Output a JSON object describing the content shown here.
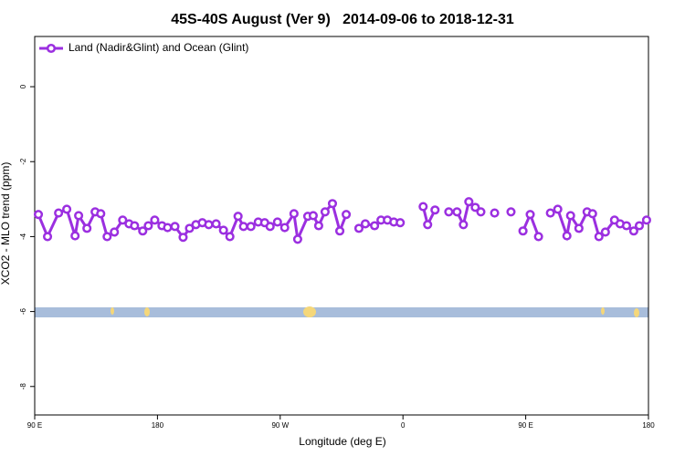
{
  "chart_data": {
    "type": "line",
    "title": "45S-40S August (Ver 9)   2014-09-06 to 2018-12-31",
    "xlabel": "Longitude (deg E)",
    "ylabel": "XCO2 - MLO trend (ppm)",
    "x": [
      92.7,
      99.4,
      107.5,
      113.5,
      119.6,
      122.2,
      128.3,
      134.3,
      138.4,
      143.1,
      148.4,
      154.5,
      159.2,
      163.2,
      169.2,
      173.3,
      178,
      183.3,
      187.4,
      192.8,
      198.8,
      203.5,
      208.2,
      212.9,
      217.6,
      223,
      228.4,
      233.1,
      239.1,
      243.1,
      248.5,
      253.9,
      258.6,
      262.6,
      268,
      273.3,
      280.1,
      282.8,
      290.2,
      294.2,
      298.2,
      302.9,
      308.3,
      313.7,
      318.4,
      323,
      327.7,
      332.4,
      339.2,
      343.9,
      348.6,
      353.3,
      358,
      366.7,
      374.8,
      378.1,
      383.5,
      388.5,
      393.6,
      399.6,
      404.3,
      408.3,
      413,
      417.1,
      421.8,
      427.2,
      433.2,
      439.2,
      444,
      448,
      453.3,
      459.4,
      463.4,
      468.1,
      473.5,
      480.2,
      482.9,
      489,
      495,
      499,
      503.7,
      508.4,
      515.1,
      519.2,
      523.9,
      529.2,
      533.3,
      538.6
    ],
    "series": [
      {
        "name": "Land (Nadir&Glint) and Ocean (Glint)",
        "color": "#9b2fe0",
        "values": [
          -3.41,
          -4.0,
          -3.37,
          -3.27,
          -3.98,
          -3.44,
          -3.78,
          -3.34,
          -3.39,
          -4.0,
          -3.88,
          -3.56,
          -3.66,
          -3.71,
          -3.85,
          -3.71,
          -3.56,
          -3.71,
          -3.76,
          -3.73,
          -4.02,
          -3.78,
          -3.68,
          -3.63,
          -3.68,
          -3.66,
          -3.83,
          -4.0,
          -3.46,
          -3.73,
          -3.73,
          -3.61,
          -3.63,
          -3.73,
          -3.61,
          -3.76,
          -3.39,
          -4.07,
          -3.46,
          -3.44,
          -3.71,
          -3.34,
          -3.12,
          -3.85,
          -3.41,
          null,
          -3.78,
          -3.66,
          -3.71,
          -3.56,
          -3.56,
          -3.61,
          -3.63,
          null,
          -3.2,
          -3.68,
          -3.29,
          null,
          -3.34,
          -3.34,
          -3.68,
          -3.07,
          -3.22,
          -3.34,
          null,
          -3.37,
          null,
          -3.34,
          null,
          -3.85,
          -3.41,
          -4.0,
          null,
          -3.37,
          -3.27,
          -3.98,
          -3.44,
          -3.78,
          -3.34,
          -3.39,
          -4.0,
          -3.88,
          -3.56,
          -3.66,
          -3.71,
          -3.85,
          -3.71,
          -3.56
        ]
      }
    ],
    "xlim": [
      90,
      540
    ],
    "xticks": [
      {
        "value": 90,
        "label": "90 E"
      },
      {
        "value": 180,
        "label": "180"
      },
      {
        "value": 270,
        "label": "90 W"
      },
      {
        "value": 360,
        "label": "0"
      },
      {
        "value": 450,
        "label": "90 E"
      },
      {
        "value": 540,
        "label": "180"
      }
    ],
    "ylim": [
      -8.76,
      1.34
    ],
    "yticks": [
      0,
      -2,
      -4,
      -6,
      -8
    ],
    "grid": false,
    "legend": "top-left"
  }
}
